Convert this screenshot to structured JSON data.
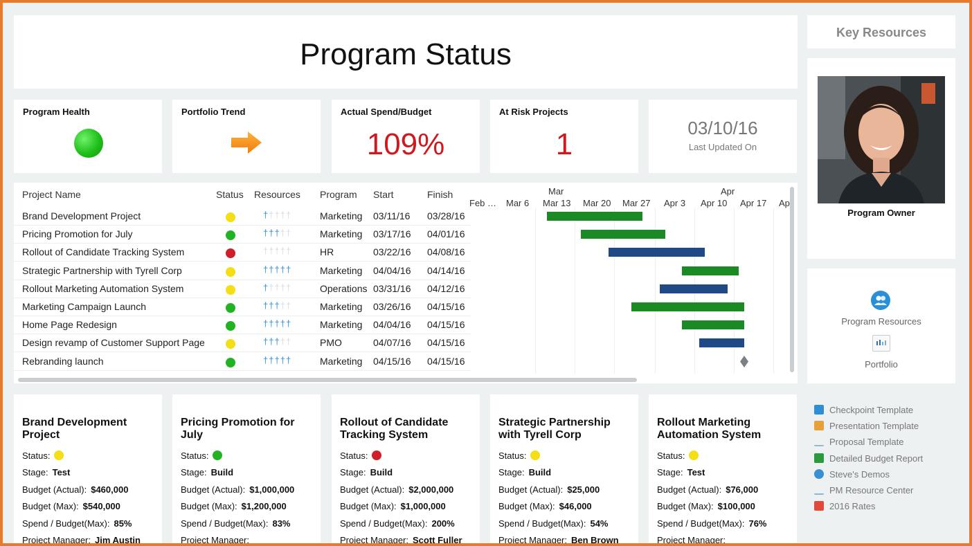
{
  "header": {
    "title": "Program Status"
  },
  "kpis": {
    "health_label": "Program Health",
    "health_color": "#22c01e",
    "trend_label": "Portfolio Trend",
    "trend_icon": "arrow-right-icon",
    "spend_label": "Actual Spend/Budget",
    "spend_value": "109%",
    "risk_label": "At Risk Projects",
    "risk_value": "1",
    "date_value": "03/10/16",
    "date_label": "Last Updated On"
  },
  "colors": {
    "green": "#22b322",
    "yellow": "#f4df15",
    "red": "#d11f2a",
    "bar_green": "#1b8a24",
    "bar_blue": "#1f4a86",
    "accent": "#2f8fd6"
  },
  "table": {
    "headers": [
      "Project Name",
      "Status",
      "Resources",
      "Program",
      "Start",
      "Finish"
    ],
    "rows": [
      {
        "name": "Brand Development Project",
        "status": "yellow",
        "resources": 1,
        "program": "Marketing",
        "start": "03/11/16",
        "finish": "03/28/16"
      },
      {
        "name": "Pricing Promotion for July",
        "status": "green",
        "resources": 3,
        "program": "Marketing",
        "start": "03/17/16",
        "finish": "04/01/16"
      },
      {
        "name": "Rollout of Candidate Tracking System",
        "status": "red",
        "resources": 0,
        "program": "HR",
        "start": "03/22/16",
        "finish": "04/08/16"
      },
      {
        "name": "Strategic Partnership with Tyrell Corp",
        "status": "yellow",
        "resources": 5,
        "program": "Marketing",
        "start": "04/04/16",
        "finish": "04/14/16"
      },
      {
        "name": "Rollout Marketing Automation System",
        "status": "yellow",
        "resources": 1,
        "program": "Operations",
        "start": "03/31/16",
        "finish": "04/12/16"
      },
      {
        "name": "Marketing Campaign Launch",
        "status": "green",
        "resources": 3,
        "program": "Marketing",
        "start": "03/26/16",
        "finish": "04/15/16"
      },
      {
        "name": "Home Page Redesign",
        "status": "green",
        "resources": 5,
        "program": "Marketing",
        "start": "04/04/16",
        "finish": "04/15/16"
      },
      {
        "name": "Design revamp of Customer Support Page",
        "status": "yellow",
        "resources": 3,
        "program": "PMO",
        "start": "04/07/16",
        "finish": "04/15/16"
      },
      {
        "name": "Rebranding launch",
        "status": "green",
        "resources": 5,
        "program": "Marketing",
        "start": "04/15/16",
        "finish": "04/15/16"
      }
    ]
  },
  "gantt": {
    "months": [
      "Mar",
      "Apr"
    ],
    "weeks": [
      "Feb …",
      "Mar 6",
      "Mar 13",
      "Mar 20",
      "Mar 27",
      "Apr 3",
      "Apr 10",
      "Apr 17",
      "Ap"
    ],
    "bars": [
      {
        "start": "03/11/16",
        "finish": "03/28/16",
        "color": "green"
      },
      {
        "start": "03/17/16",
        "finish": "04/01/16",
        "color": "green"
      },
      {
        "start": "03/22/16",
        "finish": "04/08/16",
        "color": "blue"
      },
      {
        "start": "04/04/16",
        "finish": "04/14/16",
        "color": "green"
      },
      {
        "start": "03/31/16",
        "finish": "04/12/16",
        "color": "blue"
      },
      {
        "start": "03/26/16",
        "finish": "04/15/16",
        "color": "green"
      },
      {
        "start": "04/04/16",
        "finish": "04/15/16",
        "color": "green"
      },
      {
        "start": "04/07/16",
        "finish": "04/15/16",
        "color": "blue"
      },
      {
        "start": "04/15/16",
        "finish": "04/15/16",
        "color": "milestone"
      }
    ]
  },
  "details_labels": {
    "status": "Status:",
    "stage": "Stage:",
    "budget_actual": "Budget (Actual):",
    "budget_max": "Budget (Max):",
    "spend_budget": "Spend / Budget(Max):",
    "manager": "Project Manager:"
  },
  "details": [
    {
      "title": "Brand Development Project",
      "status": "yellow",
      "stage": "Test",
      "budget_actual": "$460,000",
      "budget_max": "$540,000",
      "spend": "85%",
      "manager": "Jim Austin"
    },
    {
      "title": "Pricing Promotion for July",
      "status": "green",
      "stage": "Build",
      "budget_actual": "$1,000,000",
      "budget_max": "$1,200,000",
      "spend": "83%",
      "manager": ""
    },
    {
      "title": "Rollout of Candidate Tracking System",
      "status": "red",
      "stage": "Build",
      "budget_actual": "$2,000,000",
      "budget_max": "$1,000,000",
      "spend": "200%",
      "manager": "Scott Fuller"
    },
    {
      "title": "Strategic Partnership with Tyrell Corp",
      "status": "yellow",
      "stage": "Build",
      "budget_actual": "$25,000",
      "budget_max": "$46,000",
      "spend": "54%",
      "manager": "Ben Brown"
    },
    {
      "title": "Rollout Marketing Automation System",
      "status": "yellow",
      "stage": "Test",
      "budget_actual": "$76,000",
      "budget_max": "$100,000",
      "spend": "76%",
      "manager": ""
    }
  ],
  "sidebar": {
    "key_resources": "Key Resources",
    "owner_label": "Program Owner",
    "program_resources": "Program Resources",
    "portfolio": "Portfolio",
    "docs": [
      {
        "label": "Checkpoint Template",
        "icon": "excel-icon",
        "color": "#2f8fd6"
      },
      {
        "label": "Presentation Template",
        "icon": "powerpoint-icon",
        "color": "#e8a13a"
      },
      {
        "label": "Proposal Template",
        "icon": "link-icon",
        "color": "#9ab6cc"
      },
      {
        "label": "Detailed Budget Report",
        "icon": "spreadsheet-icon",
        "color": "#2b9a3c"
      },
      {
        "label": "Steve's Demos",
        "icon": "globe-icon",
        "color": "#3a8fd0"
      },
      {
        "label": "PM Resource Center",
        "icon": "chain-link-icon",
        "color": "#8fb4cf"
      },
      {
        "label": "2016 Rates",
        "icon": "pdf-icon",
        "color": "#e04a3a"
      }
    ]
  }
}
